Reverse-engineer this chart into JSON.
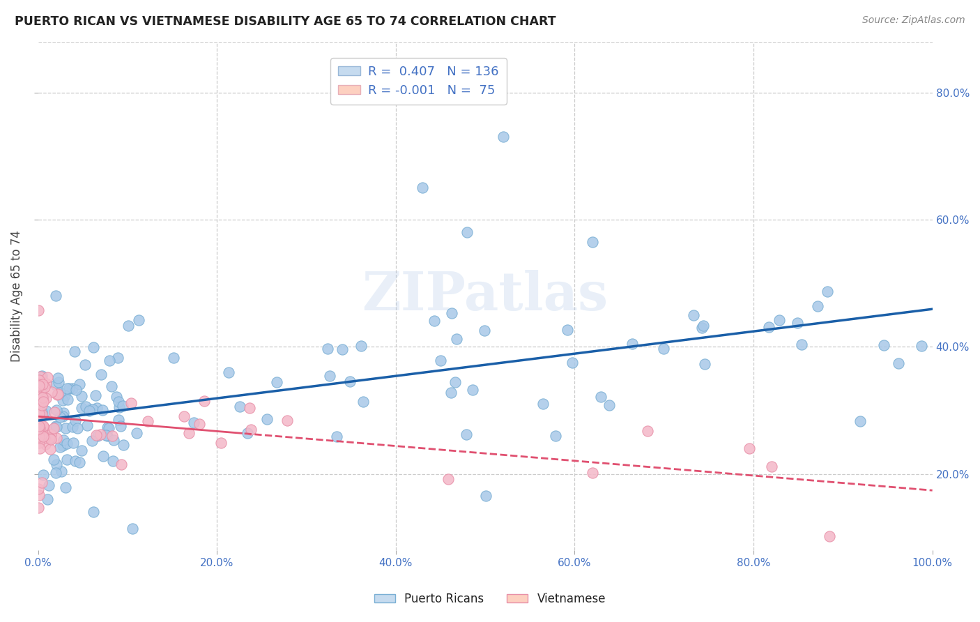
{
  "title": "PUERTO RICAN VS VIETNAMESE DISABILITY AGE 65 TO 74 CORRELATION CHART",
  "source": "Source: ZipAtlas.com",
  "ylabel": "Disability Age 65 to 74",
  "watermark": "ZIPatlas",
  "legend_labels": [
    "Puerto Ricans",
    "Vietnamese"
  ],
  "r_pr": 0.407,
  "n_pr": 136,
  "r_vn": -0.001,
  "n_vn": 75,
  "blue_dot_color": "#a8c8e8",
  "blue_dot_edge": "#7aafd4",
  "pink_dot_color": "#f4b8c8",
  "pink_dot_edge": "#e890a8",
  "blue_line_color": "#1a5fa8",
  "pink_line_color": "#e05070",
  "blue_fill": "#c6dbef",
  "pink_fill": "#fdd0c0",
  "background": "#ffffff",
  "grid_color": "#cccccc",
  "tick_color": "#4472c4",
  "title_color": "#222222",
  "ylabel_color": "#444444",
  "source_color": "#888888"
}
